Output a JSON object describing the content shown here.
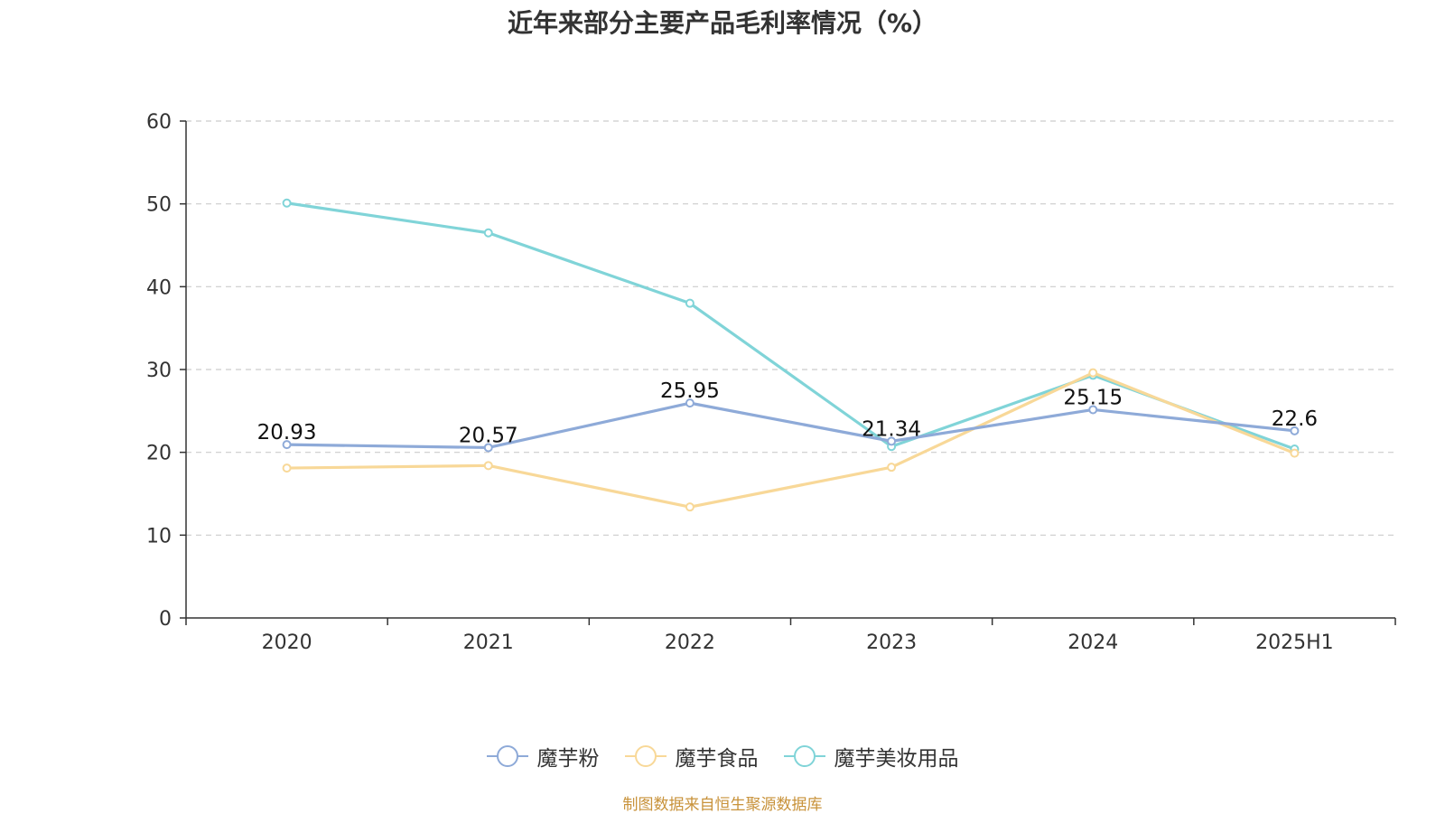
{
  "chart_data": {
    "type": "line",
    "title": "近年来部分主要产品毛利率情况（%）",
    "xlabel": "",
    "ylabel": "",
    "categories": [
      "2020",
      "2021",
      "2022",
      "2023",
      "2024",
      "2025H1"
    ],
    "ylim": [
      0,
      60
    ],
    "yticks": [
      "0",
      "10",
      "20",
      "30",
      "40",
      "50",
      "60"
    ],
    "grid": true,
    "legend_position": "bottom",
    "series": [
      {
        "name": "魔芋粉",
        "color": "#8eaad8",
        "values": [
          20.93,
          20.57,
          25.95,
          21.34,
          25.15,
          22.6
        ],
        "labels": [
          "20.93",
          "20.57",
          "25.95",
          "21.34",
          "25.15",
          "22.6"
        ]
      },
      {
        "name": "魔芋食品",
        "color": "#f8d898",
        "values": [
          18.1,
          18.4,
          13.4,
          18.2,
          29.6,
          19.9
        ],
        "labels": [
          "",
          "",
          "",
          "",
          "",
          ""
        ]
      },
      {
        "name": "魔芋美妆用品",
        "color": "#80d4d8",
        "values": [
          50.1,
          46.5,
          38.0,
          20.7,
          29.3,
          20.4
        ],
        "labels": [
          "",
          "",
          "",
          "",
          "",
          ""
        ]
      }
    ]
  },
  "source": "制图数据来自恒生聚源数据库"
}
